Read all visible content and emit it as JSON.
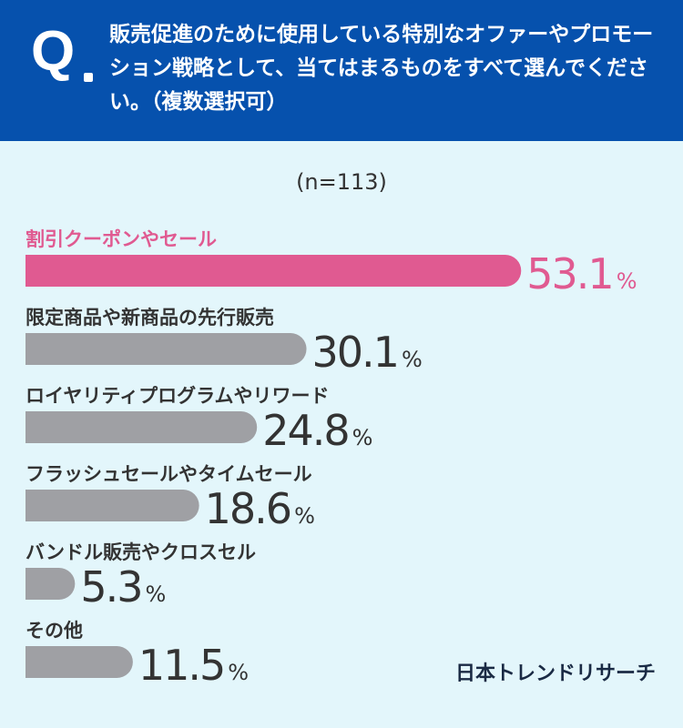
{
  "question": {
    "mark": "Q",
    "text": "販売促進のために使用している特別なオファーやプロモーション戦略として、当てはまるものをすべて選んでください。（複数選択可）"
  },
  "sample_label": "(n=113)",
  "brand": "日本トレンドリサーチ",
  "colors": {
    "header": "#0651ad",
    "background": "#e3f6fb",
    "highlight": "#e05a91",
    "bar": "#9fa0a4",
    "value_text": "#333333"
  },
  "chart_data": {
    "type": "bar",
    "orientation": "horizontal",
    "unit": "%",
    "categories": [
      "割引クーポンやセール",
      "限定商品や新商品の先行販売",
      "ロイヤリティプログラムやリワード",
      "フラッシュセールやタイムセール",
      "バンドル販売やクロスセル",
      "その他"
    ],
    "values": [
      53.1,
      30.1,
      24.8,
      18.6,
      5.3,
      11.5
    ],
    "highlight_index": 0,
    "xlim": [
      0,
      100
    ]
  }
}
